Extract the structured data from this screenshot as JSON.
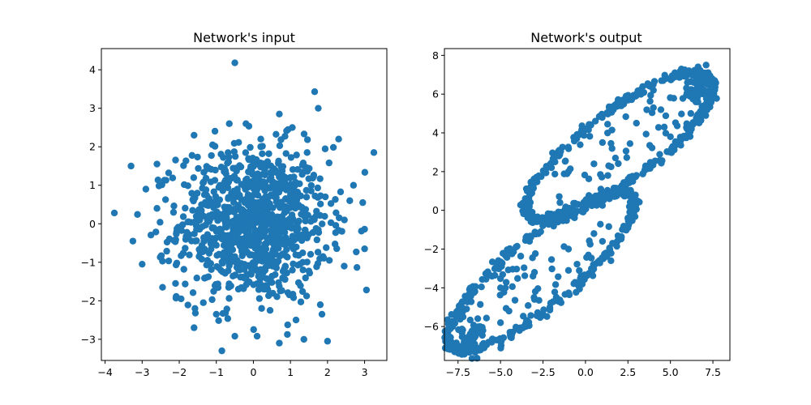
{
  "chart_data": [
    {
      "type": "scatter",
      "title": "Network's input",
      "xlabel": "",
      "ylabel": "",
      "xlim": [
        -4.1,
        3.6
      ],
      "ylim": [
        -3.55,
        4.55
      ],
      "xticks": [
        -4,
        -3,
        -2,
        -1,
        0,
        1,
        2,
        3
      ],
      "xtick_labels": [
        "−4",
        "−3",
        "−2",
        "−1",
        "0",
        "1",
        "2",
        "3"
      ],
      "yticks": [
        -3,
        -2,
        -1,
        0,
        1,
        2,
        3,
        4
      ],
      "ytick_labels": [
        "−3",
        "−2",
        "−1",
        "0",
        "1",
        "2",
        "3",
        "4"
      ],
      "grid": false,
      "color": "#1f77b4",
      "distribution": "approximately standard normal cloud centered at (0, 0)",
      "points": [
        [
          -0.5,
          4.18
        ],
        [
          1.75,
          3.0
        ],
        [
          3.25,
          1.85
        ],
        [
          2.3,
          2.2
        ],
        [
          -3.75,
          0.28
        ],
        [
          -1.6,
          -2.7
        ],
        [
          -0.85,
          -3.3
        ],
        [
          0.7,
          -3.1
        ],
        [
          2.0,
          -3.05
        ],
        [
          3.05,
          -1.72
        ],
        [
          -3.25,
          -0.45
        ],
        [
          -3.0,
          -1.05
        ],
        [
          0.7,
          2.85
        ],
        [
          -0.2,
          2.6
        ],
        [
          -0.65,
          2.6
        ],
        [
          -0.5,
          -2.92
        ],
        [
          0.1,
          -2.92
        ],
        [
          -2.6,
          0.4
        ],
        [
          2.6,
          0.6
        ],
        [
          3.0,
          -0.65
        ],
        [
          -3.3,
          1.5
        ],
        [
          2.95,
          0.55
        ],
        [
          -1.95,
          -1.95
        ],
        [
          1.85,
          -2.35
        ],
        [
          -2.45,
          -1.65
        ],
        [
          -1.0,
          -2.35
        ],
        [
          1.15,
          -2.5
        ],
        [
          2.45,
          -1.1
        ],
        [
          -2.6,
          1.55
        ],
        [
          2.7,
          1.0
        ],
        [
          -2.9,
          0.9
        ],
        [
          -1.6,
          2.3
        ],
        [
          1.45,
          1.85
        ],
        [
          0.2,
          2.2
        ],
        [
          -1.1,
          2.05
        ],
        [
          1.05,
          2.5
        ],
        [
          -2.1,
          -1.55
        ],
        [
          2.05,
          -0.95
        ],
        [
          -1.35,
          -2.05
        ],
        [
          0.45,
          -2.25
        ]
      ]
    },
    {
      "type": "scatter",
      "title": "Network's output",
      "xlabel": "",
      "ylabel": "",
      "xlim": [
        -8.3,
        8.5
      ],
      "ylim": [
        -7.75,
        8.35
      ],
      "xticks": [
        -7.5,
        -5.0,
        -2.5,
        0.0,
        2.5,
        5.0,
        7.5
      ],
      "xtick_labels": [
        "−7.5",
        "−5.0",
        "−2.5",
        "0.0",
        "2.5",
        "5.0",
        "7.5"
      ],
      "yticks": [
        -6,
        -4,
        -2,
        0,
        2,
        4,
        6,
        8
      ],
      "ytick_labels": [
        "−6",
        "−4",
        "−2",
        "0",
        "2",
        "4",
        "6",
        "8"
      ],
      "grid": false,
      "color": "#1f77b4",
      "distribution": "two elongated loops: one from (-3.5, 0) to (7.5, 7) in the upper right, one from (-8, -7) to (2.8, 0.7) in the lower left, with sparse points inside each loop",
      "points": [
        [
          -8.0,
          -7.15
        ],
        [
          7.1,
          7.5
        ],
        [
          7.45,
          6.8
        ],
        [
          -3.3,
          0.2
        ],
        [
          2.8,
          0.5
        ],
        [
          -2.0,
          2.2
        ],
        [
          0.0,
          4.2
        ],
        [
          2.0,
          5.4
        ],
        [
          4.0,
          6.2
        ],
        [
          6.0,
          6.6
        ],
        [
          -1.5,
          0.4
        ],
        [
          1.0,
          0.9
        ],
        [
          3.0,
          1.8
        ],
        [
          5.0,
          3.8
        ],
        [
          6.5,
          5.6
        ],
        [
          -6.5,
          -6.5
        ],
        [
          -5.0,
          -5.8
        ],
        [
          -3.0,
          -4.6
        ],
        [
          -1.0,
          -3.1
        ],
        [
          1.0,
          -1.6
        ],
        [
          -7.2,
          -5.5
        ],
        [
          -5.5,
          -3.4
        ],
        [
          -3.5,
          -1.4
        ],
        [
          -1.5,
          -0.3
        ],
        [
          1.0,
          0.25
        ],
        [
          -1.0,
          2.0
        ],
        [
          1.0,
          3.5
        ],
        [
          3.0,
          4.5
        ],
        [
          4.0,
          5.3
        ],
        [
          0.5,
          2.4
        ],
        [
          -5.0,
          -4.0
        ],
        [
          -3.0,
          -3.2
        ],
        [
          -1.0,
          -2.0
        ],
        [
          0.5,
          -1.2
        ],
        [
          1.5,
          -2.6
        ],
        [
          -6.2,
          -6.0
        ],
        [
          -4.5,
          -5.2
        ],
        [
          6.2,
          5.0
        ],
        [
          7.0,
          6.2
        ],
        [
          2.5,
          -0.9
        ]
      ]
    }
  ]
}
